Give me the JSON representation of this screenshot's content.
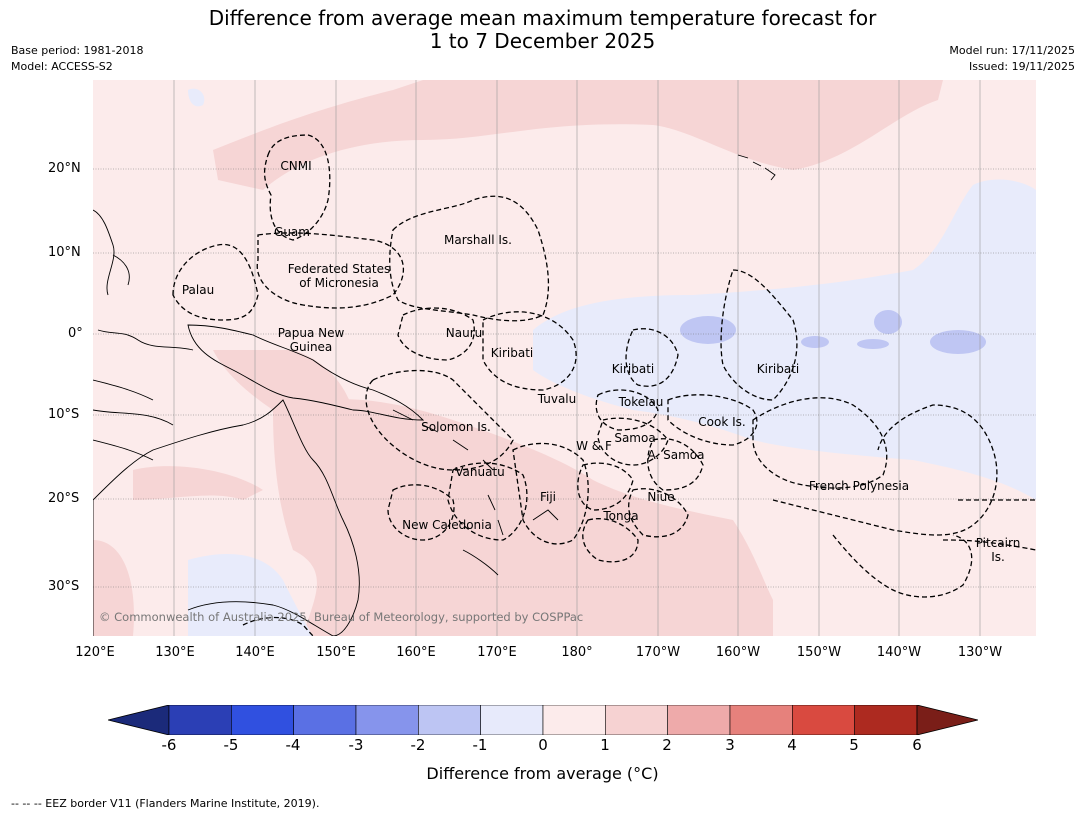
{
  "title": {
    "line1": "Difference from average mean maximum temperature forecast for",
    "line2": "1 to 7 December 2025"
  },
  "meta": {
    "base_period": "Base period: 1981-2018",
    "model": "Model: ACCESS-S2",
    "model_run": "Model run: 17/11/2025",
    "issued": "Issued: 19/11/2025"
  },
  "copyright": "© Commonwealth of Australia 2025, Bureau of Meteorology, supported by COSPPac",
  "axes": {
    "lon_labels": [
      "120°E",
      "130°E",
      "140°E",
      "150°E",
      "160°E",
      "170°E",
      "180°",
      "170°W",
      "160°W",
      "150°W",
      "140°W",
      "130°W"
    ],
    "lat_labels": [
      "20°N",
      "10°N",
      "0°",
      "10°S",
      "20°S",
      "30°S"
    ]
  },
  "regions": {
    "cnmi": "CNMI",
    "guam": "Guam",
    "marshall": "Marshall Is.",
    "fsm_1": "Federated States",
    "fsm_2": "of Micronesia",
    "palau": "Palau",
    "png_1": "Papua New",
    "png_2": "Guinea",
    "nauru": "Nauru",
    "kiribati_w": "Kiribati",
    "kiribati_c": "Kiribati",
    "kiribati_e": "Kiribati",
    "tuvalu": "Tuvalu",
    "tokelau": "Tokelau",
    "cook": "Cook Is.",
    "solomon": "Solomon Is.",
    "samoa": "Samoa",
    "wf": "W & F",
    "asamoa": "A. Samoa",
    "vanuatu": "Vanuatu",
    "fiji": "Fiji",
    "niue": "Niue",
    "tonga": "Tonga",
    "new_caledonia": "New Caledonia",
    "french_polynesia": "French Polynesia",
    "pitcairn_1": "Pitcairn",
    "pitcairn_2": "Is."
  },
  "colorbar": {
    "ticks": [
      "-6",
      "-5",
      "-4",
      "-3",
      "-2",
      "-1",
      "0",
      "1",
      "2",
      "3",
      "4",
      "5",
      "6"
    ],
    "colors": [
      "#2b3fb5",
      "#3050e0",
      "#5a70e4",
      "#8694ec",
      "#bdc5f3",
      "#e7eafb",
      "#fcebeb",
      "#f6d2d2",
      "#eeaaaa",
      "#e6817c",
      "#d94a40",
      "#ad2a20"
    ],
    "low_extend": "#1b2a7a",
    "high_extend": "#7a1e18",
    "label": "Difference from average (°C)"
  },
  "footer": "-- -- -- EEZ border V11 (Flanders Marine Institute, 2019).",
  "palette": {
    "bg_plus1": "#fcebeb",
    "plus1_2": "#f6d5d5",
    "minus1_0": "#e8ebfb",
    "minus2_1": "#bfc6f3"
  }
}
